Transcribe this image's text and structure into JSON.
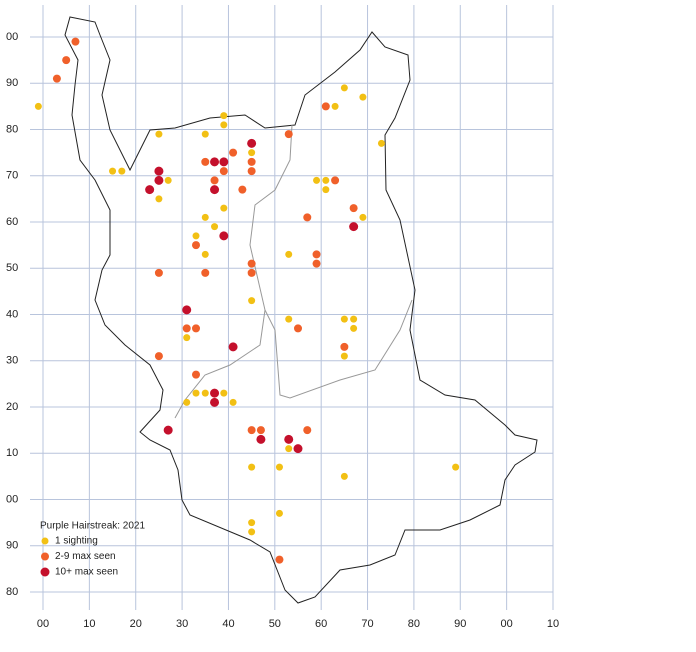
{
  "map": {
    "title": "Purple Hairstreak:  2021",
    "xlim": [
      0,
      110
    ],
    "ylim": [
      -20,
      100
    ],
    "xticks": [
      {
        "value": 0,
        "label": "00"
      },
      10,
      20,
      30,
      40,
      50,
      60,
      70,
      80,
      90,
      {
        "value": 100,
        "label": "00"
      },
      {
        "value": 110,
        "label": "10"
      }
    ],
    "yticks": [
      {
        "value": 100,
        "label": "00"
      },
      90,
      80,
      70,
      60,
      50,
      40,
      30,
      20,
      10,
      {
        "value": 0,
        "label": "00"
      },
      {
        "value": -10,
        "label": "90"
      },
      {
        "value": -20,
        "label": "80"
      }
    ],
    "series": [
      {
        "name": "1 sighting",
        "color": "#f2c014",
        "points": [
          [
            -1,
            85
          ],
          [
            15,
            71
          ],
          [
            17,
            71
          ],
          [
            25,
            79
          ],
          [
            25,
            65
          ],
          [
            27,
            69
          ],
          [
            35,
            79
          ],
          [
            39,
            83
          ],
          [
            39,
            81
          ],
          [
            35,
            61
          ],
          [
            37,
            59
          ],
          [
            39,
            63
          ],
          [
            33,
            57
          ],
          [
            35,
            53
          ],
          [
            45,
            75
          ],
          [
            45,
            43
          ],
          [
            53,
            53
          ],
          [
            53,
            39
          ],
          [
            59,
            69
          ],
          [
            61,
            69
          ],
          [
            61,
            67
          ],
          [
            63,
            85
          ],
          [
            65,
            89
          ],
          [
            69,
            87
          ],
          [
            73,
            77
          ],
          [
            69,
            61
          ],
          [
            65,
            39
          ],
          [
            67,
            39
          ],
          [
            67,
            37
          ],
          [
            65,
            31
          ],
          [
            31,
            35
          ],
          [
            31,
            21
          ],
          [
            33,
            23
          ],
          [
            35,
            23
          ],
          [
            39,
            23
          ],
          [
            41,
            21
          ],
          [
            45,
            7
          ],
          [
            51,
            7
          ],
          [
            53,
            11
          ],
          [
            65,
            5
          ],
          [
            89,
            7
          ],
          [
            45,
            -5
          ],
          [
            45,
            -7
          ],
          [
            51,
            -3
          ]
        ]
      },
      {
        "name": "2-9 max seen",
        "color": "#f0602a",
        "points": [
          [
            3,
            91
          ],
          [
            5,
            95
          ],
          [
            7,
            99
          ],
          [
            35,
            73
          ],
          [
            37,
            69
          ],
          [
            39,
            71
          ],
          [
            41,
            75
          ],
          [
            43,
            67
          ],
          [
            45,
            73
          ],
          [
            45,
            71
          ],
          [
            53,
            79
          ],
          [
            61,
            85
          ],
          [
            57,
            61
          ],
          [
            59,
            53
          ],
          [
            59,
            51
          ],
          [
            63,
            69
          ],
          [
            67,
            63
          ],
          [
            33,
            55
          ],
          [
            35,
            49
          ],
          [
            25,
            49
          ],
          [
            45,
            51
          ],
          [
            45,
            49
          ],
          [
            31,
            37
          ],
          [
            33,
            37
          ],
          [
            25,
            31
          ],
          [
            55,
            37
          ],
          [
            65,
            33
          ],
          [
            33,
            27
          ],
          [
            37,
            23
          ],
          [
            45,
            15
          ],
          [
            47,
            15
          ],
          [
            57,
            15
          ],
          [
            51,
            -13
          ]
        ]
      },
      {
        "name": "10+ max seen",
        "color": "#c4102c",
        "points": [
          [
            23,
            67
          ],
          [
            25,
            71
          ],
          [
            25,
            69
          ],
          [
            37,
            73
          ],
          [
            39,
            73
          ],
          [
            45,
            77
          ],
          [
            37,
            67
          ],
          [
            39,
            57
          ],
          [
            31,
            41
          ],
          [
            41,
            33
          ],
          [
            37,
            23
          ],
          [
            37,
            21
          ],
          [
            27,
            15
          ],
          [
            47,
            13
          ],
          [
            53,
            13
          ],
          [
            55,
            11
          ],
          [
            67,
            59
          ]
        ]
      }
    ]
  }
}
